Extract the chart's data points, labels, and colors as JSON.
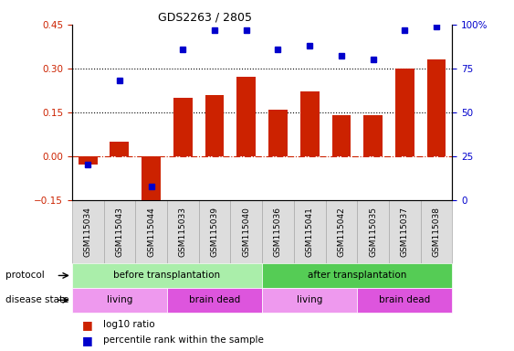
{
  "title": "GDS2263 / 2805",
  "samples": [
    "GSM115034",
    "GSM115043",
    "GSM115044",
    "GSM115033",
    "GSM115039",
    "GSM115040",
    "GSM115036",
    "GSM115041",
    "GSM115042",
    "GSM115035",
    "GSM115037",
    "GSM115038"
  ],
  "log10_ratio": [
    -0.03,
    0.05,
    -0.17,
    0.2,
    0.21,
    0.27,
    0.16,
    0.22,
    0.14,
    0.14,
    0.3,
    0.33
  ],
  "percentile_rank_pct": [
    20,
    68,
    8,
    86,
    97,
    97,
    86,
    88,
    82,
    80,
    97,
    99
  ],
  "bar_color": "#cc2200",
  "dot_color": "#0000cc",
  "ylim_left": [
    -0.15,
    0.45
  ],
  "ylim_right": [
    0,
    100
  ],
  "yticks_left": [
    -0.15,
    0.0,
    0.15,
    0.3,
    0.45
  ],
  "yticks_right": [
    0,
    25,
    50,
    75,
    100
  ],
  "hlines": [
    0.15,
    0.3
  ],
  "protocol_groups": [
    {
      "label": "before transplantation",
      "start": 0,
      "end": 6,
      "color": "#aaeeaa"
    },
    {
      "label": "after transplantation",
      "start": 6,
      "end": 12,
      "color": "#55cc55"
    }
  ],
  "disease_groups": [
    {
      "label": "living",
      "start": 0,
      "end": 3,
      "color": "#ee99ee"
    },
    {
      "label": "brain dead",
      "start": 3,
      "end": 6,
      "color": "#dd55dd"
    },
    {
      "label": "living",
      "start": 6,
      "end": 9,
      "color": "#ee99ee"
    },
    {
      "label": "brain dead",
      "start": 9,
      "end": 12,
      "color": "#dd55dd"
    }
  ],
  "protocol_label": "protocol",
  "disease_label": "disease state",
  "legend_bar_label": "log10 ratio",
  "legend_dot_label": "percentile rank within the sample",
  "zero_line_color": "#cc2200",
  "dotted_line_color": "#000000",
  "sample_box_color": "#dddddd",
  "sample_box_edge": "#aaaaaa"
}
